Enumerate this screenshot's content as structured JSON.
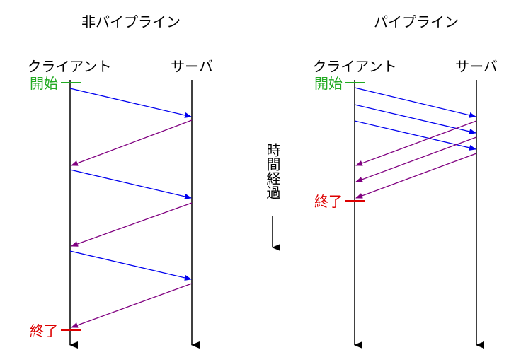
{
  "left": {
    "title": "非パイプライン",
    "client": "クライアント",
    "server": "サーバ",
    "start": "開始",
    "end": "終了"
  },
  "right": {
    "title": "パイプライン",
    "client": "クライアント",
    "server": "サーバ",
    "start": "開始",
    "end": "終了"
  },
  "time_label": "時間経過",
  "colors": {
    "request": "#0000ee",
    "response": "#800080",
    "start": "#22aa22",
    "end": "#dd0000",
    "line": "#000000"
  }
}
